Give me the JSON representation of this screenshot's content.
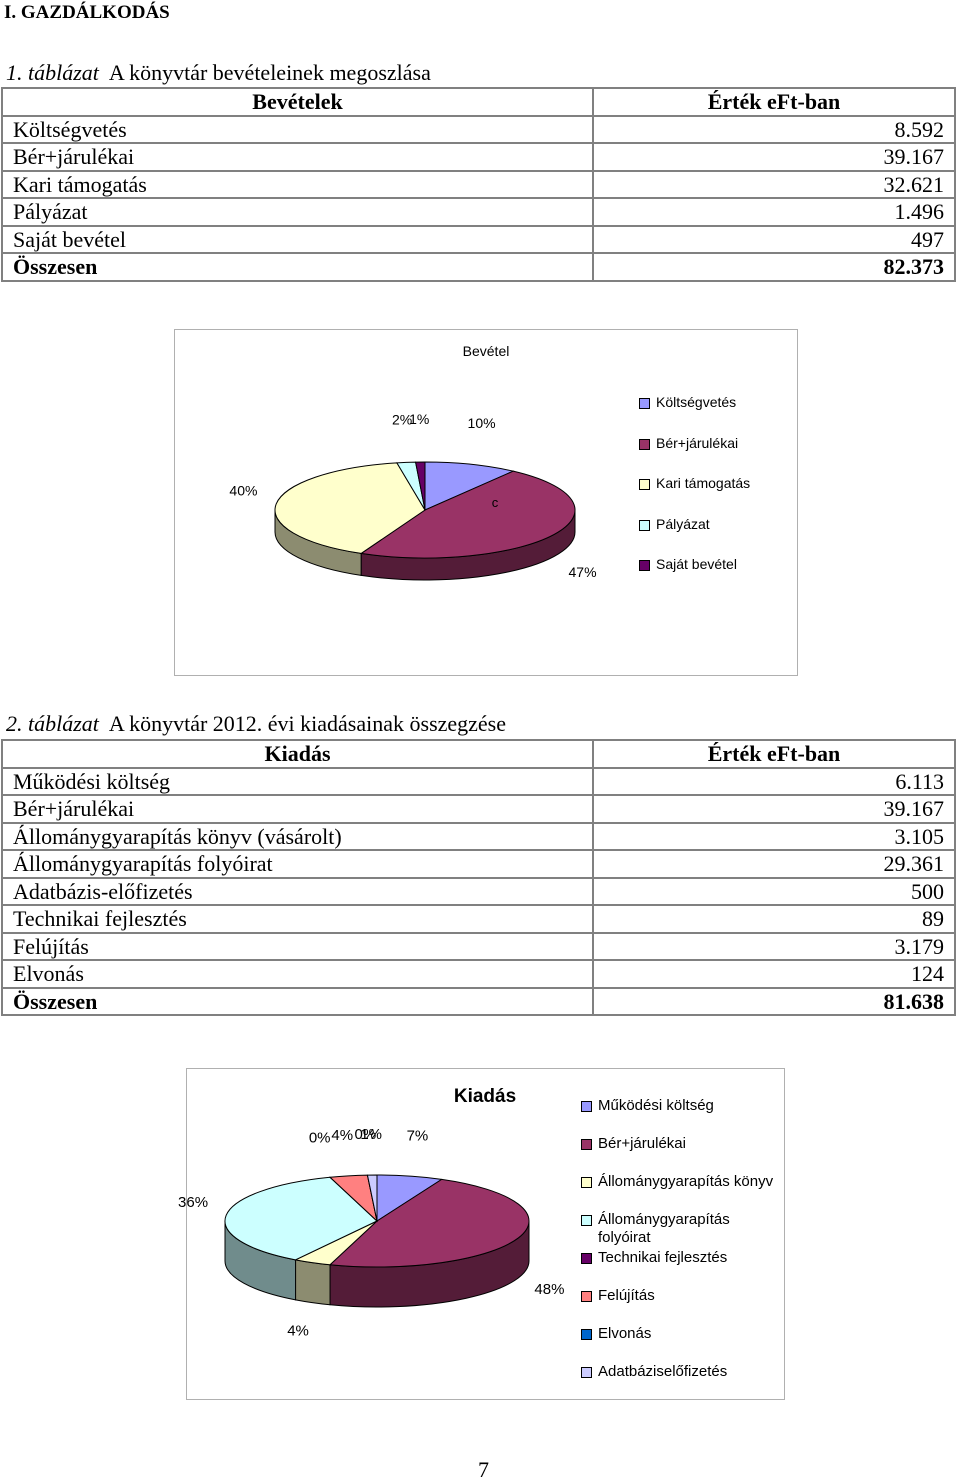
{
  "heading": "I. GAZDÁLKODÁS",
  "table1": {
    "caption": {
      "number": "1. táblázat",
      "text": "A könyvtár bevételeinek megoszlása"
    },
    "header": [
      "Bevételek",
      "Érték eFt-ban"
    ],
    "rows": [
      [
        "Költségvetés",
        "8.592"
      ],
      [
        "Bér+járulékai",
        "39.167"
      ],
      [
        "Kari támogatás",
        "32.621"
      ],
      [
        "Pályázat",
        "1.496"
      ],
      [
        "Saját bevétel",
        "497"
      ]
    ],
    "total": [
      "Összesen",
      "82.373"
    ]
  },
  "chart1": {
    "type": "pie",
    "title": "Bevétel",
    "annotation": "c",
    "categories": [
      "Költségvetés",
      "Bér+járulékai",
      "Kari támogatás",
      "Pályázat",
      "Saját bevétel"
    ],
    "values": [
      10,
      47,
      40,
      2,
      1
    ],
    "value_labels": [
      "10%",
      "47%",
      "40%",
      "2%",
      "1%"
    ],
    "colors": [
      "#9999ff",
      "#993366",
      "#ffffcc",
      "#ccffff",
      "#660066"
    ]
  },
  "table2": {
    "caption": {
      "number": "2. táblázat",
      "text": "A könyvtár 2012. évi kiadásainak összegzése"
    },
    "header": [
      "Kiadás",
      "Érték eFt-ban"
    ],
    "rows": [
      [
        "Működési költség",
        "6.113"
      ],
      [
        "Bér+járulékai",
        "39.167"
      ],
      [
        "Állománygyarapítás könyv (vásárolt)",
        "3.105"
      ],
      [
        "Állománygyarapítás folyóirat",
        "29.361"
      ],
      [
        "Adatbázis-előfizetés",
        "500"
      ],
      [
        "Technikai fejlesztés",
        "89"
      ],
      [
        "Felújítás",
        "3.179"
      ],
      [
        "Elvonás",
        "124"
      ]
    ],
    "total": [
      "Összesen",
      "81.638"
    ]
  },
  "chart2": {
    "type": "pie",
    "title": "Kiadás",
    "categories": [
      "Működési költség",
      "Bér+járulékai",
      "Állománygyarapítás könyv",
      "Állománygyarapítás folyóirat",
      "Technikai fejlesztés",
      "Felújítás",
      "Elvonás",
      "Adatbáziselőfizetés"
    ],
    "values": [
      7,
      48,
      4,
      36,
      0,
      4,
      0,
      1
    ],
    "value_labels": [
      "7%",
      "48%",
      "4%",
      "36%",
      "0%",
      "4%",
      "0%",
      "1%"
    ],
    "colors": [
      "#9999ff",
      "#993366",
      "#ffffcc",
      "#ccffff",
      "#660066",
      "#ff8080",
      "#0066cc",
      "#ccccff"
    ]
  },
  "page_number": "7"
}
